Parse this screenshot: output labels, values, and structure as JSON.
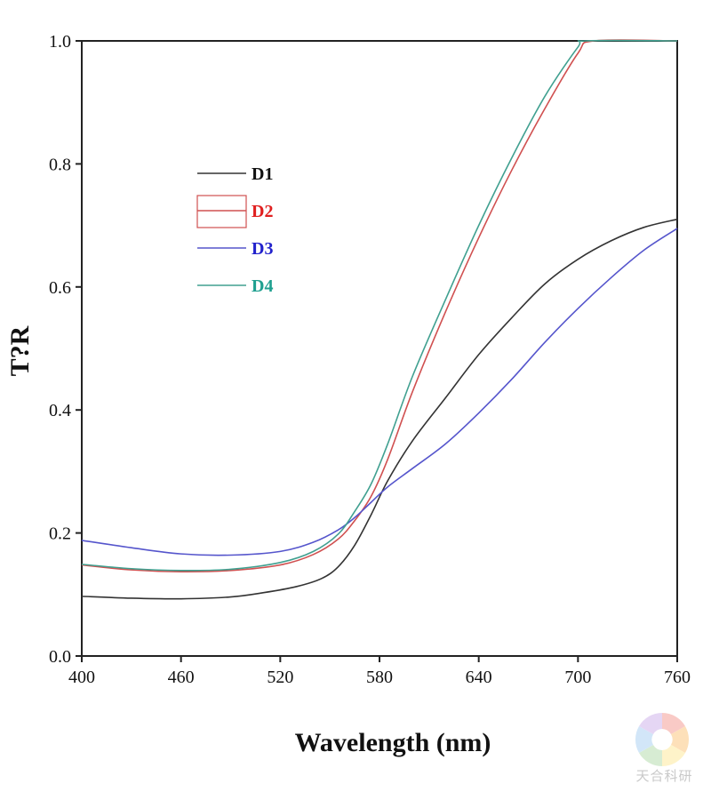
{
  "chart_data": {
    "type": "line",
    "title": "",
    "xlabel": "Wavelength (nm)",
    "ylabel": "T?R",
    "xlim": [
      400,
      760
    ],
    "ylim": [
      0.0,
      1.0
    ],
    "xticks": [
      400,
      460,
      520,
      580,
      640,
      700,
      760
    ],
    "yticks": [
      0.0,
      0.2,
      0.4,
      0.6,
      0.8,
      1.0
    ],
    "xtick_labels": [
      "400",
      "460",
      "520",
      "580",
      "640",
      "700",
      "760"
    ],
    "ytick_labels": [
      "0.0",
      "0.2",
      "0.4",
      "0.6",
      "0.8",
      "1.0"
    ],
    "grid": false,
    "legend_position": "upper-left",
    "series": [
      {
        "name": "D1",
        "color": "#333333",
        "legend_color": "#111111",
        "x": [
          400,
          430,
          460,
          490,
          510,
          530,
          545,
          555,
          565,
          575,
          585,
          600,
          620,
          640,
          660,
          680,
          700,
          720,
          740,
          760
        ],
        "y": [
          0.097,
          0.094,
          0.093,
          0.096,
          0.103,
          0.113,
          0.126,
          0.145,
          0.18,
          0.23,
          0.285,
          0.35,
          0.42,
          0.49,
          0.55,
          0.605,
          0.645,
          0.675,
          0.697,
          0.71
        ]
      },
      {
        "name": "D2",
        "color": "#d05050",
        "legend_color": "#e02020",
        "x": [
          400,
          430,
          460,
          490,
          520,
          540,
          555,
          565,
          575,
          585,
          600,
          620,
          640,
          660,
          680,
          700,
          710,
          760
        ],
        "y": [
          0.148,
          0.14,
          0.137,
          0.139,
          0.148,
          0.165,
          0.19,
          0.22,
          0.26,
          0.32,
          0.43,
          0.56,
          0.68,
          0.79,
          0.89,
          0.98,
          1.0,
          1.0
        ]
      },
      {
        "name": "D3",
        "color": "#5555cc",
        "legend_color": "#2222cc",
        "x": [
          400,
          430,
          460,
          490,
          520,
          540,
          555,
          565,
          575,
          585,
          600,
          620,
          640,
          660,
          680,
          700,
          720,
          740,
          760
        ],
        "y": [
          0.188,
          0.176,
          0.166,
          0.164,
          0.17,
          0.185,
          0.205,
          0.225,
          0.25,
          0.275,
          0.305,
          0.345,
          0.395,
          0.45,
          0.51,
          0.565,
          0.615,
          0.66,
          0.695
        ]
      },
      {
        "name": "D4",
        "color": "#40a090",
        "legend_color": "#20a090",
        "x": [
          400,
          430,
          460,
          490,
          520,
          540,
          555,
          565,
          575,
          585,
          600,
          620,
          640,
          660,
          680,
          700,
          705,
          760
        ],
        "y": [
          0.149,
          0.142,
          0.139,
          0.141,
          0.152,
          0.17,
          0.198,
          0.235,
          0.28,
          0.345,
          0.455,
          0.58,
          0.7,
          0.81,
          0.91,
          0.99,
          1.0,
          1.0
        ]
      }
    ]
  },
  "watermark": {
    "text": "天合科研"
  }
}
